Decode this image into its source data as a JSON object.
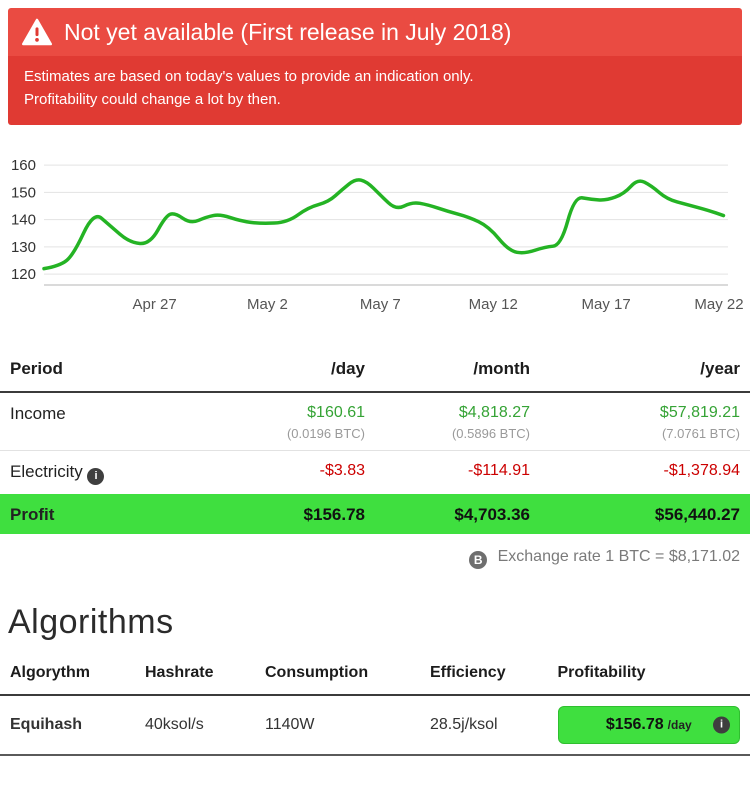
{
  "banner": {
    "title": "Not yet available (First release in July 2018)",
    "line1": "Estimates are based on today's values to provide an indication only.",
    "line2": "Profitability could change a lot by then."
  },
  "icons": {
    "info": "i",
    "bitcoin": "B"
  },
  "chart_data": {
    "type": "line",
    "title": "",
    "xlabel": "",
    "ylabel": "",
    "ylim": [
      116,
      163
    ],
    "xlim": [
      0,
      30.3
    ],
    "yticks": [
      120,
      130,
      140,
      150,
      160
    ],
    "xticks": [
      4.9,
      9.9,
      14.9,
      19.9,
      24.9,
      29.9
    ],
    "xtick_labels": [
      "Apr 27",
      "May 2",
      "May 7",
      "May 12",
      "May 17",
      "May 22"
    ],
    "grid": "horizontal",
    "legend": "none",
    "line_color": "#24b324",
    "series": [
      {
        "name": "price-index",
        "points": [
          [
            0,
            122
          ],
          [
            0.7,
            123
          ],
          [
            1.3,
            127
          ],
          [
            2.2,
            143
          ],
          [
            2.9,
            138
          ],
          [
            3.8,
            131.5
          ],
          [
            4.7,
            131
          ],
          [
            5.4,
            141.5
          ],
          [
            5.8,
            142.5
          ],
          [
            6.5,
            138.5
          ],
          [
            7.2,
            141
          ],
          [
            7.8,
            142
          ],
          [
            8.7,
            139.5
          ],
          [
            9.6,
            138.5
          ],
          [
            10.8,
            139
          ],
          [
            11.7,
            144.5
          ],
          [
            12.6,
            146.5
          ],
          [
            13.2,
            151
          ],
          [
            13.8,
            155
          ],
          [
            14.3,
            154
          ],
          [
            14.9,
            149
          ],
          [
            15.6,
            143.5
          ],
          [
            16.3,
            146.5
          ],
          [
            17,
            145.5
          ],
          [
            17.9,
            143
          ],
          [
            18.8,
            141
          ],
          [
            19.7,
            137.5
          ],
          [
            20.6,
            128.5
          ],
          [
            21.3,
            127.5
          ],
          [
            22.2,
            130
          ],
          [
            22.9,
            130.5
          ],
          [
            23.5,
            148.5
          ],
          [
            24.2,
            147.5
          ],
          [
            24.9,
            147
          ],
          [
            25.7,
            149.5
          ],
          [
            26.3,
            155
          ],
          [
            26.9,
            152.5
          ],
          [
            27.6,
            147.5
          ],
          [
            28.5,
            145.5
          ],
          [
            29.4,
            143.5
          ],
          [
            30.1,
            141.5
          ]
        ]
      }
    ]
  },
  "profit_table": {
    "headers": [
      "Period",
      "/day",
      "/month",
      "/year"
    ],
    "income": {
      "label": "Income",
      "day": {
        "value": "$160.61",
        "btc": "(0.0196 BTC)"
      },
      "month": {
        "value": "$4,818.27",
        "btc": "(0.5896 BTC)"
      },
      "year": {
        "value": "$57,819.21",
        "btc": "(7.0761 BTC)"
      }
    },
    "electricity": {
      "label": "Electricity",
      "day": "-$3.83",
      "month": "-$114.91",
      "year": "-$1,378.94"
    },
    "profit": {
      "label": "Profit",
      "day": "$156.78",
      "month": "$4,703.36",
      "year": "$56,440.27"
    },
    "exchange_rate": "Exchange rate 1 BTC = $8,171.02"
  },
  "algorithms": {
    "title": "Algorithms",
    "headers": [
      "Algorythm",
      "Hashrate",
      "Consumption",
      "Efficiency",
      "Profitability"
    ],
    "rows": [
      {
        "algorithm": "Equihash",
        "hashrate": "40ksol/s",
        "consumption": "1140W",
        "efficiency": "28.5j/ksol",
        "profit": "$156.78",
        "unit": "/day"
      }
    ]
  },
  "colors": {
    "banner_top": "#ea4b42",
    "banner_bottom": "#e03a33",
    "income_green": "#35a335",
    "expense_red": "#cc0000",
    "profit_row_green": "#3fdf3f",
    "chart_line_green": "#24b324",
    "button_green": "#3fdf3f"
  }
}
